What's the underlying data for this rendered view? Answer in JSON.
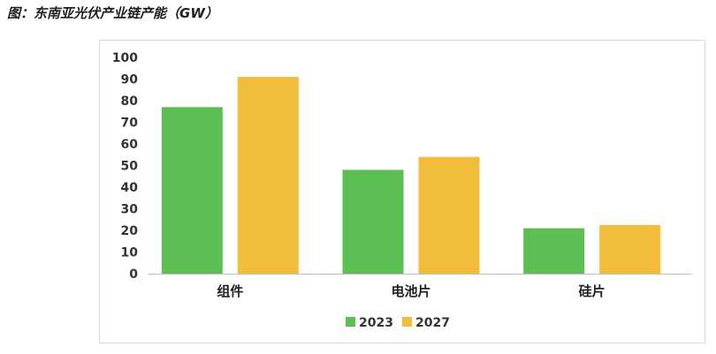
{
  "caption": "图：东南亚光伏产业链产能（GW）",
  "colors": {
    "s2023": "#5cbf54",
    "s2027": "#f2bd3a",
    "axis": "#bfbfbf"
  },
  "chart_data": {
    "type": "bar",
    "title": "",
    "xlabel": "",
    "ylabel": "",
    "categories": [
      "组件",
      "电池片",
      "硅片"
    ],
    "series": [
      {
        "name": "2023",
        "values": [
          77,
          48,
          21
        ]
      },
      {
        "name": "2027",
        "values": [
          91,
          54,
          22.5
        ]
      }
    ],
    "ylim": [
      0,
      100
    ],
    "yticks": [
      "0",
      "10",
      "20",
      "30",
      "40",
      "50",
      "60",
      "70",
      "80",
      "90",
      "100"
    ],
    "grid": false,
    "legend": "bottom"
  }
}
